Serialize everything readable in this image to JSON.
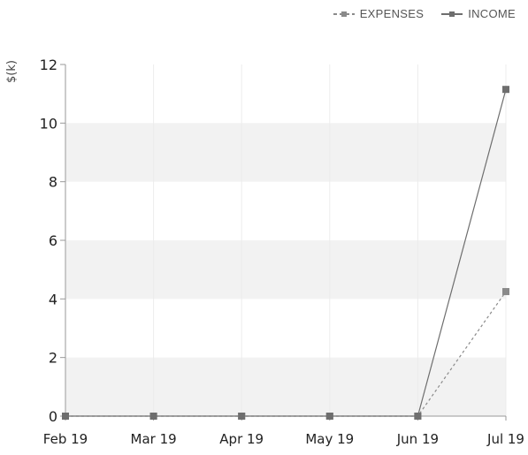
{
  "chart_data": {
    "type": "line",
    "categories": [
      "Feb 19",
      "Mar 19",
      "Apr 19",
      "May 19",
      "Jun 19",
      "Jul 19"
    ],
    "series": [
      {
        "name": "EXPENSES",
        "values": [
          0,
          0,
          0,
          0,
          0,
          4.25
        ],
        "style": "dashed",
        "color": "#8a8a8a"
      },
      {
        "name": "INCOME",
        "values": [
          0,
          0,
          0,
          0,
          0,
          11.15
        ],
        "style": "solid",
        "color": "#6e6e6e"
      }
    ],
    "ylabel": "$(k)",
    "xlabel": "",
    "ylim": [
      0,
      12
    ],
    "yticks": [
      0,
      2,
      4,
      6,
      8,
      10,
      12
    ],
    "grid": "alternating horizontal bands",
    "band_color": "#f2f2f2",
    "legend_position": "top-right"
  }
}
